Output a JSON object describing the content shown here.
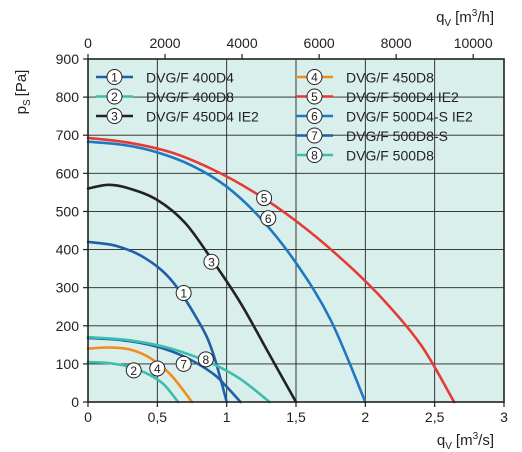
{
  "chart_data": {
    "type": "line",
    "xlabel_bottom": "q",
    "xlabel_bottom_sub": "V",
    "xlabel_bottom_unit": "[m",
    "xlabel_bottom_sup": "3",
    "xlabel_bottom_tail": "/s]",
    "xlabel_top": "q",
    "xlabel_top_sub": "V",
    "xlabel_top_unit": "[m",
    "xlabel_top_sup": "3",
    "xlabel_top_tail": "/h]",
    "ylabel": "p",
    "ylabel_sub": "S",
    "ylabel_unit": "[Pa]",
    "xlim": [
      0,
      3
    ],
    "ylim": [
      0,
      900
    ],
    "xlim_top": [
      0,
      10800
    ],
    "x_ticks": [
      "0",
      "0,5",
      "1",
      "1,5",
      "2",
      "2,5",
      "3"
    ],
    "x_tick_values": [
      0,
      0.5,
      1,
      1.5,
      2,
      2.5,
      3
    ],
    "x_top_ticks": [
      "0",
      "2000",
      "4000",
      "6000",
      "8000",
      "10000"
    ],
    "x_top_tick_values": [
      0,
      2000,
      4000,
      6000,
      8000,
      10000
    ],
    "y_ticks": [
      "0",
      "100",
      "200",
      "300",
      "400",
      "500",
      "600",
      "700",
      "800",
      "900"
    ],
    "y_tick_values": [
      0,
      100,
      200,
      300,
      400,
      500,
      600,
      700,
      800,
      900
    ],
    "grid": true,
    "legend_position": "top",
    "background_color": "#d9efec",
    "series": [
      {
        "id": "1",
        "name": "DVG/F 400D4",
        "color": "#1f5fa8",
        "points": [
          [
            0,
            420
          ],
          [
            0.2,
            410
          ],
          [
            0.4,
            380
          ],
          [
            0.6,
            320
          ],
          [
            0.8,
            210
          ],
          [
            0.9,
            130
          ],
          [
            1.0,
            0
          ]
        ],
        "label_at": [
          0.69,
          286
        ]
      },
      {
        "id": "2",
        "name": "DVG/F 400D8",
        "color": "#3cbdad",
        "points": [
          [
            0,
            105
          ],
          [
            0.15,
            102
          ],
          [
            0.3,
            92
          ],
          [
            0.45,
            70
          ],
          [
            0.55,
            45
          ],
          [
            0.65,
            0
          ]
        ],
        "label_at": [
          0.33,
          83
        ]
      },
      {
        "id": "3",
        "name": "DVG/F 450D4 IE2",
        "color": "#222222",
        "points": [
          [
            0,
            560
          ],
          [
            0.15,
            570
          ],
          [
            0.3,
            560
          ],
          [
            0.5,
            530
          ],
          [
            0.7,
            470
          ],
          [
            0.9,
            370
          ],
          [
            1.1,
            260
          ],
          [
            1.3,
            130
          ],
          [
            1.5,
            0
          ]
        ],
        "label_at": [
          0.89,
          368
        ]
      },
      {
        "id": "4",
        "name": "DVG/F 450D8",
        "color": "#f28c1e",
        "points": [
          [
            0,
            140
          ],
          [
            0.15,
            143
          ],
          [
            0.3,
            138
          ],
          [
            0.45,
            115
          ],
          [
            0.6,
            70
          ],
          [
            0.75,
            0
          ]
        ],
        "label_at": [
          0.5,
          88
        ]
      },
      {
        "id": "5",
        "name": "DVG/F 500D4 IE2",
        "color": "#e53a35",
        "points": [
          [
            0,
            693
          ],
          [
            0.3,
            680
          ],
          [
            0.6,
            655
          ],
          [
            0.9,
            610
          ],
          [
            1.2,
            550
          ],
          [
            1.5,
            475
          ],
          [
            1.8,
            385
          ],
          [
            2.1,
            280
          ],
          [
            2.4,
            150
          ],
          [
            2.64,
            0
          ]
        ],
        "label_at": [
          1.27,
          535
        ]
      },
      {
        "id": "6",
        "name": "DVG/F 500D4-S IE2",
        "color": "#1f78c0",
        "points": [
          [
            0,
            683
          ],
          [
            0.25,
            675
          ],
          [
            0.5,
            655
          ],
          [
            0.75,
            620
          ],
          [
            1.0,
            565
          ],
          [
            1.25,
            480
          ],
          [
            1.5,
            365
          ],
          [
            1.75,
            215
          ],
          [
            2.0,
            0
          ]
        ],
        "label_at": [
          1.3,
          482
        ]
      },
      {
        "id": "7",
        "name": "DVG/F 500D8-S",
        "color": "#1f5fa8",
        "points": [
          [
            0,
            168
          ],
          [
            0.25,
            162
          ],
          [
            0.5,
            145
          ],
          [
            0.7,
            118
          ],
          [
            0.9,
            75
          ],
          [
            1.0,
            40
          ],
          [
            1.1,
            0
          ]
        ],
        "label_at": [
          0.69,
          100
        ]
      },
      {
        "id": "8",
        "name": "DVG/F 500D8",
        "color": "#3cbdad",
        "points": [
          [
            0,
            170
          ],
          [
            0.3,
            162
          ],
          [
            0.6,
            140
          ],
          [
            0.9,
            100
          ],
          [
            1.1,
            60
          ],
          [
            1.31,
            0
          ]
        ],
        "label_at": [
          0.85,
          112
        ]
      }
    ]
  }
}
